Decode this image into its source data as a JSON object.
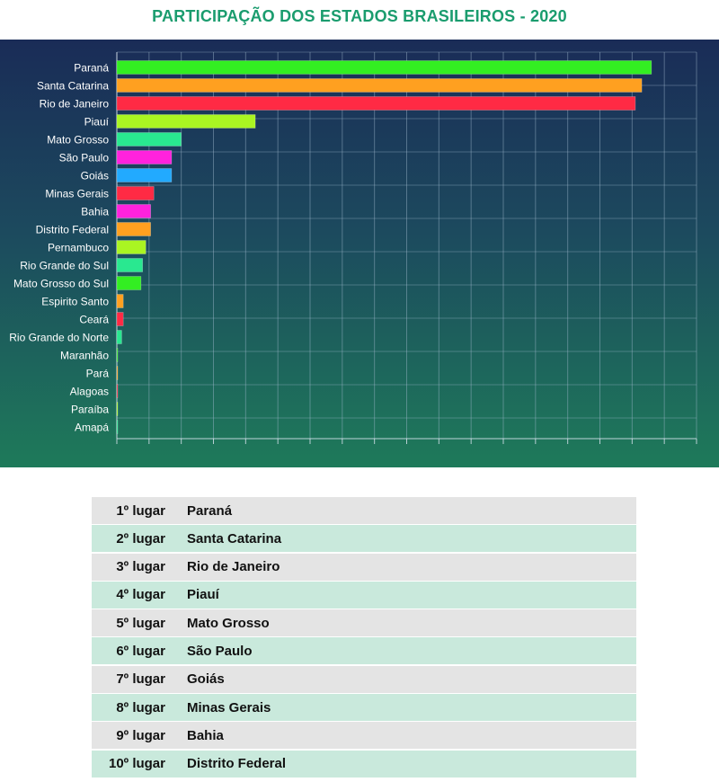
{
  "title": "PARTICIPAÇÃO DOS ESTADOS BRASILEIROS - 2020",
  "chart_data": {
    "type": "bar",
    "orientation": "horizontal",
    "categories": [
      "Paraná",
      "Santa Catarina",
      "Rio de Janeiro",
      "Piauí",
      "Mato Grosso",
      "São Paulo",
      "Goiás",
      "Minas Gerais",
      "Bahia",
      "Distrito Federal",
      "Pernambuco",
      "Rio Grande do Sul",
      "Mato Grosso do Sul",
      "Espirito Santo",
      "Ceará",
      "Rio Grande do Norte",
      "Maranhão",
      "Pará",
      "Alagoas",
      "Paraíba",
      "Amapá"
    ],
    "values": [
      33.2,
      32.6,
      32.2,
      8.6,
      4.0,
      3.4,
      3.4,
      2.3,
      2.1,
      2.1,
      1.8,
      1.6,
      1.5,
      0.4,
      0.4,
      0.3,
      0.05,
      0.05,
      0.05,
      0.03,
      0.02
    ],
    "colors": [
      "#33ee22",
      "#ffa020",
      "#ff2a44",
      "#aaf522",
      "#29e890",
      "#ff22dd",
      "#22aaff",
      "#ff2a44",
      "#ff22dd",
      "#ffa020",
      "#aaf522",
      "#29e890",
      "#33ee22",
      "#ffa020",
      "#ff2a44",
      "#29e890",
      "#33ee22",
      "#ffa020",
      "#ff2a44",
      "#aaf522",
      "#29e890"
    ],
    "xlim": [
      0,
      36
    ],
    "grid": true,
    "tick_step": 2
  },
  "ranking": [
    {
      "rank": "1º lugar",
      "state": "Paraná"
    },
    {
      "rank": "2º lugar",
      "state": "Santa Catarina"
    },
    {
      "rank": "3º lugar",
      "state": "Rio de Janeiro"
    },
    {
      "rank": "4º lugar",
      "state": "Piauí"
    },
    {
      "rank": "5º lugar",
      "state": "Mato Grosso"
    },
    {
      "rank": "6º lugar",
      "state": "São Paulo"
    },
    {
      "rank": "7º lugar",
      "state": "Goiás"
    },
    {
      "rank": "8º lugar",
      "state": "Minas Gerais"
    },
    {
      "rank": "9º lugar",
      "state": "Bahia"
    },
    {
      "rank": "10º lugar",
      "state": "Distrito Federal"
    }
  ]
}
